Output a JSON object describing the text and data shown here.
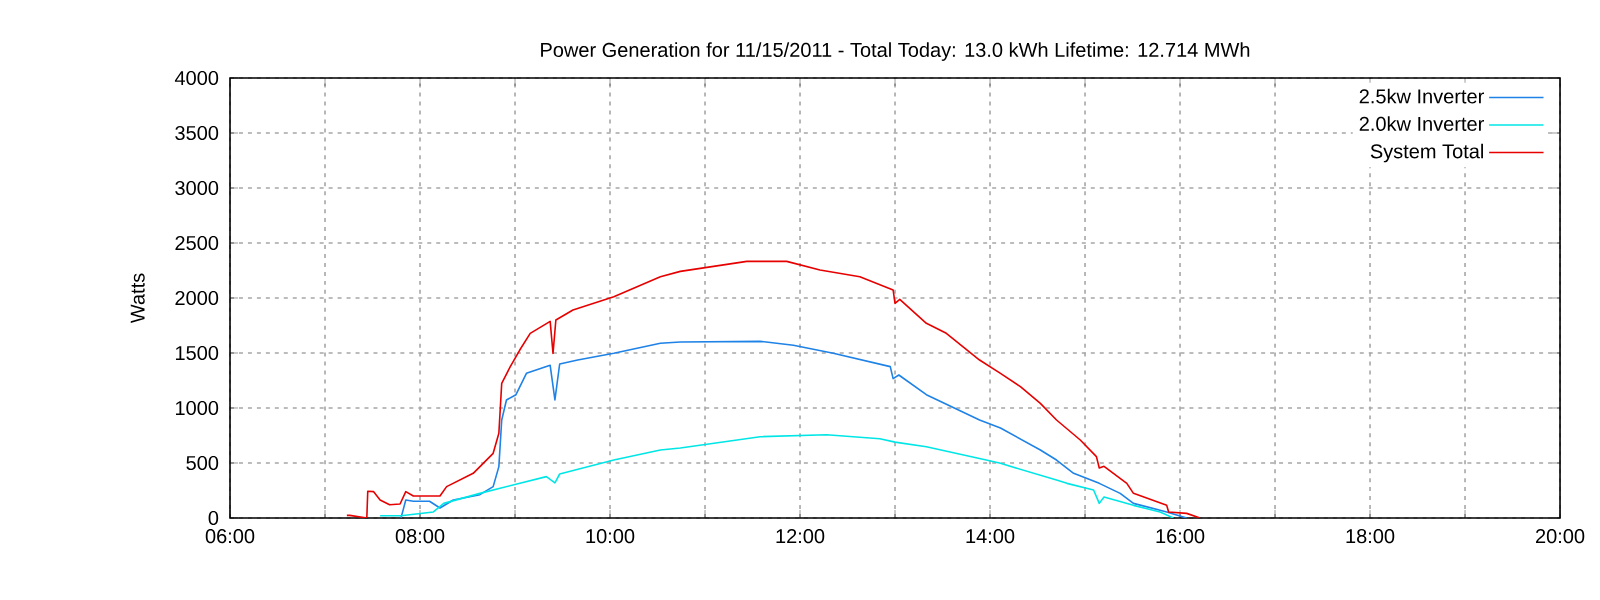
{
  "chart_data": {
    "type": "line",
    "title": "Power Generation for 11/15/2011 - Total Today: 13.0 kWh   Lifetime: 12.714 MWh",
    "ylabel": "Watts",
    "xlim": [
      6,
      20
    ],
    "xticks": [
      {
        "value": 6,
        "label": "06:00"
      },
      {
        "value": 7,
        "label": null
      },
      {
        "value": 8,
        "label": "08:00"
      },
      {
        "value": 9,
        "label": null
      },
      {
        "value": 10,
        "label": "10:00"
      },
      {
        "value": 11,
        "label": null
      },
      {
        "value": 12,
        "label": "12:00"
      },
      {
        "value": 13,
        "label": null
      },
      {
        "value": 14,
        "label": "14:00"
      },
      {
        "value": 15,
        "label": null
      },
      {
        "value": 16,
        "label": "16:00"
      },
      {
        "value": 17,
        "label": null
      },
      {
        "value": 18,
        "label": "18:00"
      },
      {
        "value": 19,
        "label": null
      },
      {
        "value": 20,
        "label": "20:00"
      }
    ],
    "ylim": [
      0,
      4000
    ],
    "yticks": [
      0,
      500,
      1000,
      1500,
      2000,
      2500,
      3000,
      3500,
      4000
    ],
    "grid": true,
    "legend": "top right",
    "marker": "none",
    "line_style": "solid",
    "series": [
      {
        "name": "2.5kw Inverter",
        "color": "#1e82e6",
        "x": [
          7.8,
          7.85,
          7.93,
          8.1,
          8.21,
          8.35,
          8.63,
          8.77,
          8.83,
          8.86,
          8.91,
          9.01,
          9.12,
          9.37,
          9.42,
          9.47,
          9.66,
          10.04,
          10.53,
          10.74,
          11.58,
          11.93,
          12.35,
          12.95,
          12.98,
          13.04,
          13.33,
          13.89,
          14.11,
          14.53,
          14.7,
          14.88,
          15.15,
          15.37,
          15.51,
          15.86,
          16.07
        ],
        "values": [
          0,
          164,
          152,
          152,
          91,
          164,
          212,
          285,
          467,
          891,
          1073,
          1121,
          1315,
          1388,
          1073,
          1400,
          1436,
          1497,
          1588,
          1600,
          1606,
          1570,
          1497,
          1376,
          1267,
          1300,
          1121,
          891,
          818,
          618,
          527,
          406,
          315,
          224,
          133,
          55,
          0
        ]
      },
      {
        "name": "2.0kw Inverter",
        "color": "#00e6e6",
        "x": [
          7.58,
          7.8,
          8.14,
          8.25,
          8.63,
          9.33,
          9.42,
          9.47,
          10.04,
          10.53,
          10.74,
          11.58,
          12.28,
          12.84,
          13.0,
          13.33,
          13.96,
          14.11,
          14.7,
          14.81,
          15.09,
          15.15,
          15.2,
          15.51,
          15.79,
          15.93
        ],
        "values": [
          20,
          20,
          55,
          133,
          224,
          376,
          320,
          400,
          527,
          618,
          636,
          739,
          757,
          721,
          690,
          648,
          527,
          497,
          345,
          315,
          255,
          133,
          190,
          115,
          55,
          0
        ]
      },
      {
        "name": "System Total",
        "color": "#e60000",
        "x": [
          7.23,
          7.26,
          7.44,
          7.45,
          7.51,
          7.58,
          7.68,
          7.79,
          7.85,
          7.93,
          8.21,
          8.28,
          8.56,
          8.77,
          8.83,
          8.86,
          8.95,
          9.05,
          9.16,
          9.37,
          9.4,
          9.43,
          9.61,
          10.04,
          10.53,
          10.74,
          11.44,
          11.86,
          12.21,
          12.63,
          12.98,
          13.0,
          13.05,
          13.33,
          13.54,
          13.89,
          14.11,
          14.32,
          14.53,
          14.7,
          14.95,
          15.12,
          15.15,
          15.2,
          15.44,
          15.51,
          15.86,
          15.88,
          16.07,
          16.21
        ],
        "values": [
          24,
          24,
          0,
          243,
          240,
          164,
          121,
          127,
          240,
          200,
          200,
          285,
          406,
          588,
          770,
          1224,
          1376,
          1527,
          1679,
          1788,
          1497,
          1800,
          1891,
          2012,
          2194,
          2242,
          2333,
          2333,
          2254,
          2194,
          2073,
          1951,
          1988,
          1770,
          1679,
          1436,
          1315,
          1194,
          1042,
          891,
          709,
          558,
          455,
          470,
          315,
          224,
          115,
          55,
          42,
          0
        ]
      }
    ]
  }
}
